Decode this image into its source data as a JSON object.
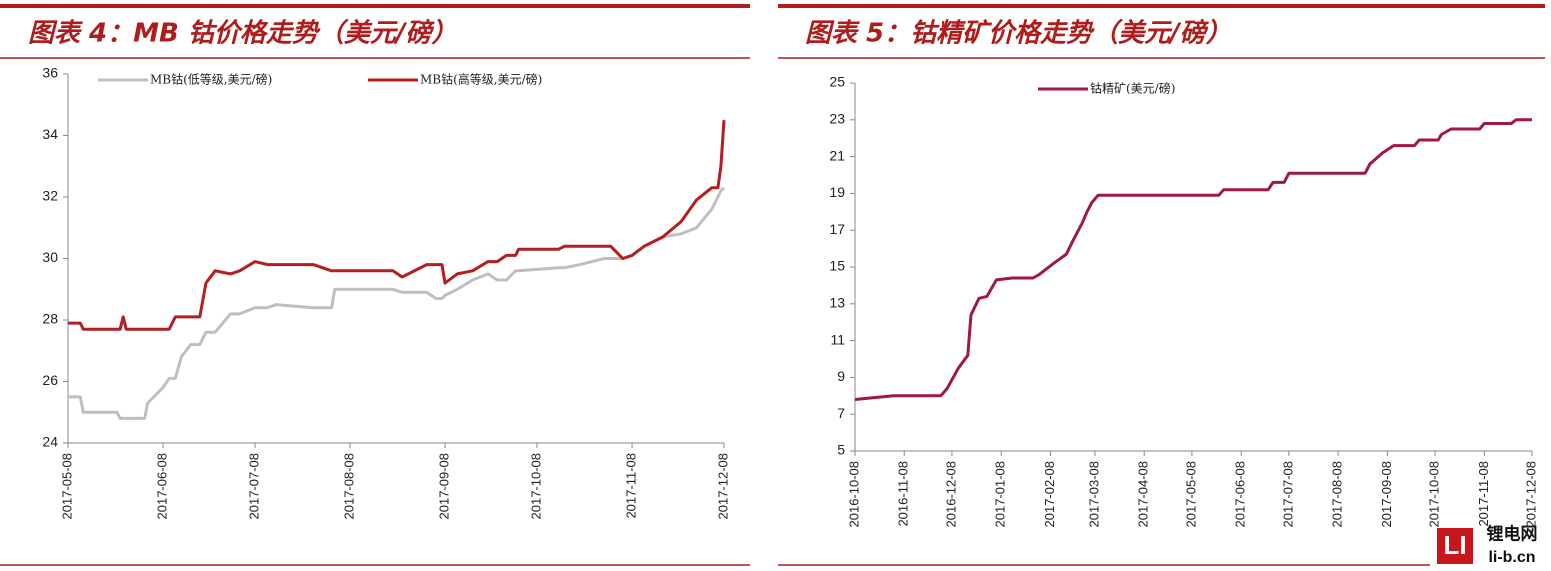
{
  "chart_data": [
    {
      "type": "line",
      "title": "图表 4：MB 钴价格走势（美元/磅）",
      "legend": "top",
      "grid": false,
      "x": [
        "2017-05-08",
        "2017-05-12",
        "2017-05-13",
        "2017-05-24",
        "2017-05-25",
        "2017-05-26",
        "2017-05-27",
        "2017-06-02",
        "2017-06-03",
        "2017-06-08",
        "2017-06-10",
        "2017-06-12",
        "2017-06-14",
        "2017-06-17",
        "2017-06-20",
        "2017-06-22",
        "2017-06-25",
        "2017-06-30",
        "2017-07-03",
        "2017-07-08",
        "2017-07-12",
        "2017-07-15",
        "2017-07-27",
        "2017-08-02",
        "2017-08-03",
        "2017-08-22",
        "2017-08-25",
        "2017-09-02",
        "2017-09-05",
        "2017-09-07",
        "2017-09-08",
        "2017-09-12",
        "2017-09-17",
        "2017-09-22",
        "2017-09-25",
        "2017-09-28",
        "2017-10-01",
        "2017-10-02",
        "2017-10-15",
        "2017-10-17",
        "2017-10-22",
        "2017-10-30",
        "2017-11-01",
        "2017-11-05",
        "2017-11-08",
        "2017-11-12",
        "2017-11-18",
        "2017-11-24",
        "2017-11-29",
        "2017-12-04",
        "2017-12-06",
        "2017-12-07",
        "2017-12-08"
      ],
      "series": [
        {
          "name": "MB钴(低等级,美元/磅)",
          "color": "#bfbfbf",
          "values": [
            25.5,
            25.5,
            25.0,
            25.0,
            24.8,
            24.8,
            24.8,
            24.8,
            25.3,
            25.8,
            26.1,
            26.1,
            26.8,
            27.2,
            27.2,
            27.6,
            27.6,
            28.2,
            28.2,
            28.4,
            28.4,
            28.5,
            28.4,
            28.4,
            29.0,
            29.0,
            28.9,
            28.9,
            28.7,
            28.7,
            28.8,
            29.0,
            29.3,
            29.5,
            29.3,
            29.3,
            29.6,
            29.6,
            29.7,
            29.7,
            29.8,
            30.0,
            30.0,
            30.0,
            30.1,
            30.4,
            30.7,
            30.8,
            31.0,
            31.6,
            32.0,
            32.2,
            32.3
          ]
        },
        {
          "name": "MB钴(高等级,美元/磅)",
          "color": "#b41e1e",
          "values": [
            27.9,
            27.9,
            27.7,
            27.7,
            27.7,
            28.1,
            27.7,
            27.7,
            27.7,
            27.7,
            27.7,
            28.1,
            28.1,
            28.1,
            28.1,
            29.2,
            29.6,
            29.5,
            29.6,
            29.9,
            29.8,
            29.8,
            29.8,
            29.6,
            29.6,
            29.6,
            29.4,
            29.8,
            29.8,
            29.8,
            29.2,
            29.5,
            29.6,
            29.9,
            29.9,
            30.1,
            30.1,
            30.3,
            30.3,
            30.4,
            30.4,
            30.4,
            30.4,
            30.0,
            30.1,
            30.4,
            30.7,
            31.2,
            31.9,
            32.3,
            32.3,
            33.0,
            34.5
          ]
        }
      ],
      "xlim": [
        "2017-05-08",
        "2017-12-08"
      ],
      "xticks": [
        "2017-05-08",
        "2017-06-08",
        "2017-07-08",
        "2017-08-08",
        "2017-09-08",
        "2017-10-08",
        "2017-11-08",
        "2017-12-08"
      ],
      "ylim": [
        24,
        36
      ],
      "yticks": [
        24,
        26,
        28,
        30,
        32,
        34,
        36
      ]
    },
    {
      "type": "line",
      "title": "图表 5：钴精矿价格走势（美元/磅）",
      "legend": "top",
      "grid": false,
      "x": [
        "2016-10-08",
        "2016-10-20",
        "2016-11-01",
        "2016-12-01",
        "2016-12-05",
        "2016-12-12",
        "2016-12-18",
        "2016-12-20",
        "2016-12-25",
        "2016-12-30",
        "2017-01-05",
        "2017-01-15",
        "2017-01-28",
        "2017-02-01",
        "2017-02-10",
        "2017-02-18",
        "2017-02-22",
        "2017-02-28",
        "2017-03-03",
        "2017-03-06",
        "2017-03-10",
        "2017-05-25",
        "2017-05-28",
        "2017-06-25",
        "2017-06-28",
        "2017-07-05",
        "2017-07-08",
        "2017-08-25",
        "2017-08-28",
        "2017-09-05",
        "2017-09-12",
        "2017-09-25",
        "2017-09-28",
        "2017-10-10",
        "2017-10-12",
        "2017-10-18",
        "2017-11-05",
        "2017-11-08",
        "2017-11-25",
        "2017-11-28",
        "2017-12-08"
      ],
      "series": [
        {
          "name": "钴精矿(美元/磅)",
          "color": "#a01a3f",
          "values": [
            7.8,
            7.9,
            8.0,
            8.0,
            8.4,
            9.5,
            10.2,
            12.4,
            13.3,
            13.4,
            14.3,
            14.4,
            14.4,
            14.6,
            15.2,
            15.7,
            16.4,
            17.4,
            18.0,
            18.5,
            18.9,
            18.9,
            19.2,
            19.2,
            19.6,
            19.6,
            20.1,
            20.1,
            20.6,
            21.2,
            21.6,
            21.6,
            21.9,
            21.9,
            22.2,
            22.5,
            22.5,
            22.8,
            22.8,
            23.0,
            23.0
          ]
        }
      ],
      "xlim": [
        "2016-10-08",
        "2017-12-08"
      ],
      "xticks": [
        "2016-10-08",
        "2016-11-08",
        "2016-12-08",
        "2017-01-08",
        "2017-02-08",
        "2017-03-08",
        "2017-04-08",
        "2017-05-08",
        "2017-06-08",
        "2017-07-08",
        "2017-08-08",
        "2017-09-08",
        "2017-10-08",
        "2017-11-08",
        "2017-12-08"
      ],
      "ylim": [
        5,
        25
      ],
      "yticks": [
        5,
        7,
        9,
        11,
        13,
        15,
        17,
        19,
        21,
        23,
        25
      ]
    }
  ],
  "watermark": {
    "logo": "LI",
    "name": "锂电网",
    "url": "li-b.cn"
  }
}
